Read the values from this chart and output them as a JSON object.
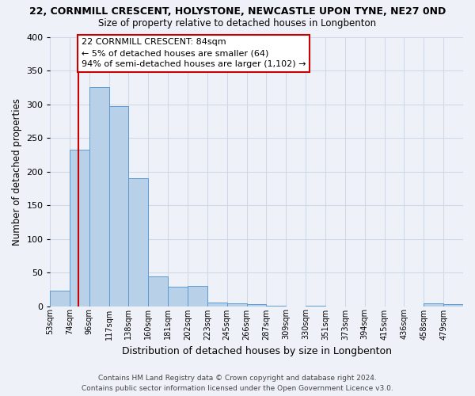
{
  "title_line1": "22, CORNMILL CRESCENT, HOLYSTONE, NEWCASTLE UPON TYNE, NE27 0ND",
  "title_line2": "Size of property relative to detached houses in Longbenton",
  "xlabel": "Distribution of detached houses by size in Longbenton",
  "ylabel": "Number of detached properties",
  "bin_labels": [
    "53sqm",
    "74sqm",
    "96sqm",
    "117sqm",
    "138sqm",
    "160sqm",
    "181sqm",
    "202sqm",
    "223sqm",
    "245sqm",
    "266sqm",
    "287sqm",
    "309sqm",
    "330sqm",
    "351sqm",
    "373sqm",
    "394sqm",
    "415sqm",
    "436sqm",
    "458sqm",
    "479sqm"
  ],
  "bar_heights": [
    23,
    232,
    325,
    297,
    190,
    44,
    29,
    30,
    5,
    4,
    3,
    1,
    0,
    1,
    0,
    0,
    0,
    0,
    0,
    4,
    3
  ],
  "bar_color": "#b8d0e8",
  "bar_edge_color": "#5b9bd5",
  "annotation_text": "22 CORNMILL CRESCENT: 84sqm\n← 5% of detached houses are smaller (64)\n94% of semi-detached houses are larger (1,102) →",
  "annotation_box_color": "#ffffff",
  "annotation_box_edge": "#cc0000",
  "ylim": [
    0,
    400
  ],
  "yticks": [
    0,
    50,
    100,
    150,
    200,
    250,
    300,
    350,
    400
  ],
  "footer_line1": "Contains HM Land Registry data © Crown copyright and database right 2024.",
  "footer_line2": "Contains public sector information licensed under the Open Government Licence v3.0.",
  "red_line_color": "#cc0000",
  "background_color": "#eef2f8",
  "grid_color": "#d0d8e8",
  "title1_fontsize": 9.0,
  "title2_fontsize": 8.5,
  "xlabel_fontsize": 9.0,
  "ylabel_fontsize": 8.5,
  "tick_fontsize": 7.0,
  "annotation_fontsize": 8.0,
  "footer_fontsize": 6.5
}
